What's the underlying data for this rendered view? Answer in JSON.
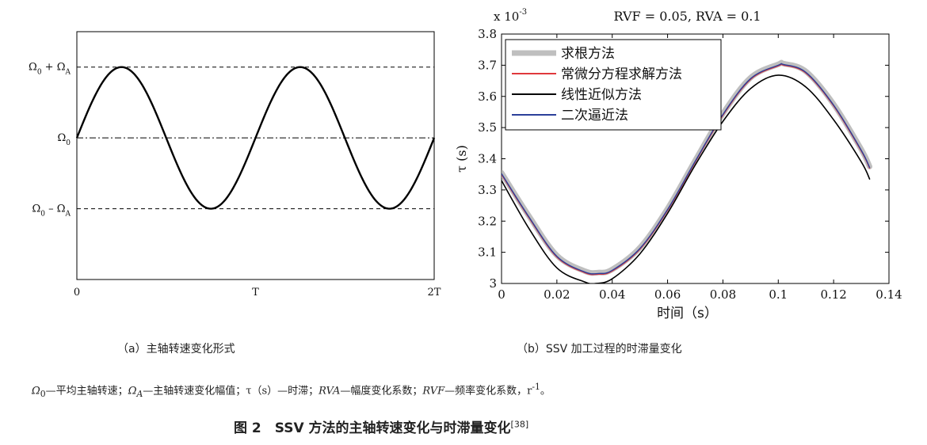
{
  "chart_data": [
    {
      "type": "line",
      "title": "",
      "xlabel": "",
      "ylabel": "",
      "x_ticks": [
        "0",
        "T",
        "2T"
      ],
      "y_ticks": [
        "Ω0 + ΩA",
        "Ω0",
        "Ω0 – ΩA"
      ],
      "y_tick_parts": [
        {
          "base": "Ω",
          "sub": "0",
          "op": " + ",
          "base2": "Ω",
          "sub2": "A"
        },
        {
          "base": "Ω",
          "sub": "0",
          "op": "",
          "base2": "",
          "sub2": ""
        },
        {
          "base": "Ω",
          "sub": "0",
          "op": " – ",
          "base2": "Ω",
          "sub2": "A"
        }
      ],
      "series": [
        {
          "function": "sin",
          "periods": 2,
          "mean": 0,
          "amplitude": 1,
          "color": "#000000"
        }
      ],
      "reference_lines": [
        {
          "y": 1,
          "style": "dashed"
        },
        {
          "y": 0,
          "style": "dash-dot"
        },
        {
          "y": -1,
          "style": "dashed"
        }
      ],
      "xlim": [
        0,
        2
      ],
      "ylim": [
        -2,
        1.5
      ]
    },
    {
      "type": "line",
      "title": "RVF = 0.05, RVA = 0.1",
      "xlabel": "时间（s）",
      "ylabel": "τ (s)",
      "y_multiplier": "x 10^-3",
      "multiplier_base": "x 10",
      "multiplier_exp": "-3",
      "xlim": [
        0,
        0.14
      ],
      "ylim": [
        3.0,
        3.8
      ],
      "x_ticks": [
        0,
        0.02,
        0.04,
        0.06,
        0.08,
        0.1,
        0.12,
        0.14
      ],
      "y_ticks": [
        3,
        3.1,
        3.2,
        3.3,
        3.4,
        3.5,
        3.6,
        3.7,
        3.8
      ],
      "x_tick_labels": [
        "0",
        "0.02",
        "0.04",
        "0.06",
        "0.08",
        "0.1",
        "0.12",
        "0.14"
      ],
      "y_tick_labels": [
        "3",
        "3.1",
        "3.2",
        "3.3",
        "3.4",
        "3.5",
        "3.6",
        "3.7",
        "3.8"
      ],
      "legend_position": "top-left",
      "series": [
        {
          "name": "求根方法",
          "color": "#aaaaaa",
          "x": [
            0,
            0.01,
            0.02,
            0.03,
            0.035,
            0.04,
            0.05,
            0.06,
            0.07,
            0.08,
            0.09,
            0.1,
            0.102,
            0.11,
            0.12,
            0.13,
            0.133
          ],
          "y": [
            3.355,
            3.215,
            3.09,
            3.04,
            3.035,
            3.045,
            3.115,
            3.24,
            3.395,
            3.545,
            3.66,
            3.703,
            3.705,
            3.68,
            3.575,
            3.43,
            3.375
          ]
        },
        {
          "name": "常微分方程求解方法",
          "color": "#e0393c",
          "x": [
            0,
            0.01,
            0.02,
            0.03,
            0.035,
            0.04,
            0.05,
            0.06,
            0.07,
            0.08,
            0.09,
            0.1,
            0.102,
            0.11,
            0.12,
            0.13,
            0.133
          ],
          "y": [
            3.35,
            3.21,
            3.085,
            3.035,
            3.03,
            3.04,
            3.11,
            3.235,
            3.39,
            3.54,
            3.655,
            3.698,
            3.7,
            3.675,
            3.57,
            3.425,
            3.37
          ]
        },
        {
          "name": "线性近似方法",
          "color": "#000000",
          "x": [
            0,
            0.01,
            0.02,
            0.03,
            0.034,
            0.04,
            0.05,
            0.06,
            0.07,
            0.08,
            0.09,
            0.1,
            0.11,
            0.12,
            0.13,
            0.133
          ],
          "y": [
            3.33,
            3.175,
            3.05,
            3.005,
            3.0,
            3.015,
            3.095,
            3.225,
            3.38,
            3.52,
            3.625,
            3.668,
            3.63,
            3.525,
            3.39,
            3.335
          ]
        },
        {
          "name": "二次逼近法",
          "color": "#2b3f9a",
          "x": [
            0,
            0.01,
            0.02,
            0.03,
            0.035,
            0.04,
            0.05,
            0.06,
            0.07,
            0.08,
            0.09,
            0.1,
            0.102,
            0.11,
            0.12,
            0.13,
            0.133
          ],
          "y": [
            3.352,
            3.212,
            3.087,
            3.037,
            3.032,
            3.042,
            3.112,
            3.237,
            3.392,
            3.542,
            3.657,
            3.7,
            3.702,
            3.677,
            3.572,
            3.427,
            3.372
          ]
        }
      ]
    }
  ],
  "captions": {
    "a": "（a）主轴转速变化形式",
    "b": "（b）SSV 加工过程的时滞量变化"
  },
  "legend_line": "Ω0—平均主轴转速；ΩA—主轴转速变化幅值；τ（s）—时滞；RVA—幅度变化系数；RVF—频率变化系数，r-1。",
  "figure_title": "图 2　SSV 方法的主轴转速变化与时滞量变化",
  "figure_ref": "[38]"
}
